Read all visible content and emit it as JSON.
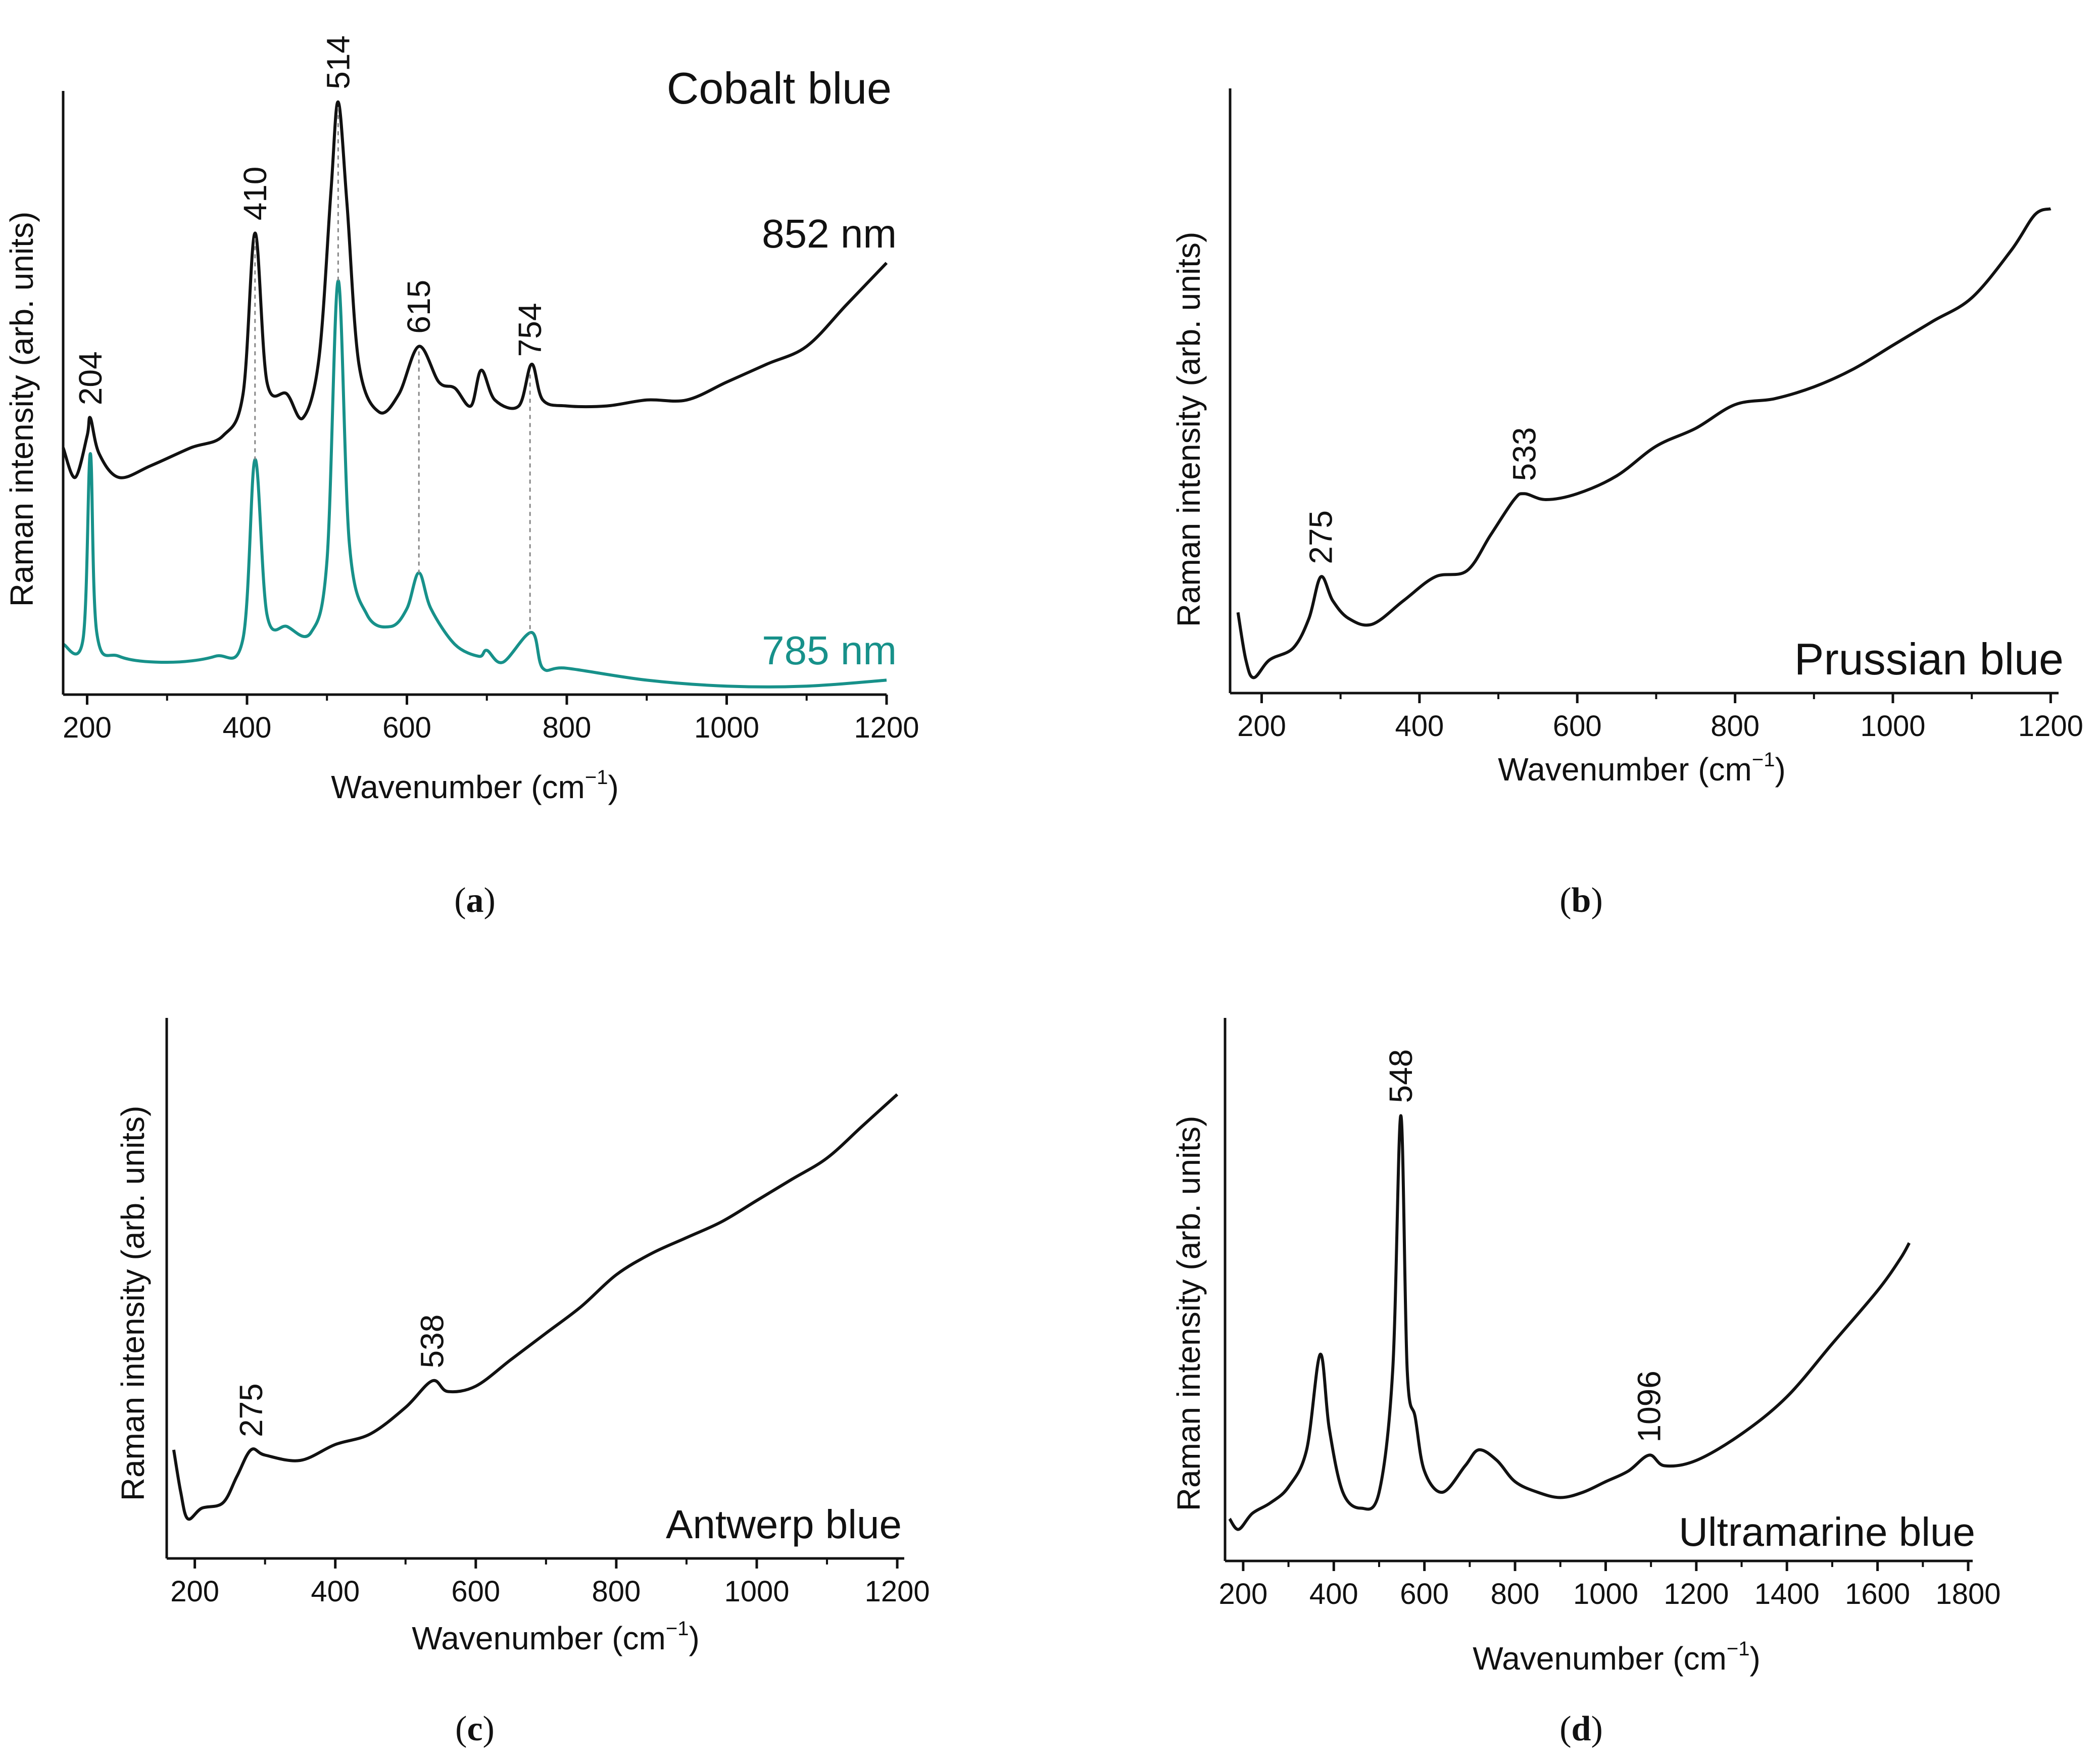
{
  "chart_data": [
    {
      "type": "line",
      "panel": "a",
      "caption_letter": "a",
      "title": "Cobalt blue",
      "xlabel": "Wavenumber (cm",
      "xlabel_sup": "−1",
      "xlabel_end": ")",
      "ylabel": "Raman intensity (arb. units)",
      "xlim": [
        170,
        1200
      ],
      "ylim": [
        0,
        1
      ],
      "xticks": [
        200,
        400,
        600,
        800,
        1000,
        1200
      ],
      "series": [
        {
          "name": "852 nm",
          "color": "#111111",
          "points": [
            [
              170,
              0.41
            ],
            [
              185,
              0.36
            ],
            [
              200,
              0.43
            ],
            [
              204,
              0.46
            ],
            [
              215,
              0.4
            ],
            [
              240,
              0.36
            ],
            [
              280,
              0.38
            ],
            [
              330,
              0.41
            ],
            [
              370,
              0.43
            ],
            [
              395,
              0.5
            ],
            [
              410,
              0.77
            ],
            [
              425,
              0.52
            ],
            [
              450,
              0.5
            ],
            [
              470,
              0.46
            ],
            [
              490,
              0.56
            ],
            [
              505,
              0.84
            ],
            [
              514,
              0.99
            ],
            [
              525,
              0.82
            ],
            [
              540,
              0.55
            ],
            [
              565,
              0.47
            ],
            [
              590,
              0.5
            ],
            [
              615,
              0.58
            ],
            [
              640,
              0.52
            ],
            [
              660,
              0.51
            ],
            [
              680,
              0.48
            ],
            [
              693,
              0.54
            ],
            [
              710,
              0.49
            ],
            [
              740,
              0.48
            ],
            [
              756,
              0.55
            ],
            [
              770,
              0.49
            ],
            [
              800,
              0.48
            ],
            [
              850,
              0.48
            ],
            [
              900,
              0.49
            ],
            [
              950,
              0.49
            ],
            [
              1000,
              0.52
            ],
            [
              1050,
              0.55
            ],
            [
              1100,
              0.58
            ],
            [
              1150,
              0.65
            ],
            [
              1200,
              0.72
            ]
          ]
        },
        {
          "name": "785 nm",
          "color": "#17918a",
          "points": [
            [
              170,
              0.08
            ],
            [
              195,
              0.09
            ],
            [
              204,
              0.4
            ],
            [
              212,
              0.1
            ],
            [
              240,
              0.06
            ],
            [
              300,
              0.05
            ],
            [
              360,
              0.06
            ],
            [
              395,
              0.09
            ],
            [
              410,
              0.39
            ],
            [
              425,
              0.13
            ],
            [
              450,
              0.11
            ],
            [
              480,
              0.1
            ],
            [
              500,
              0.22
            ],
            [
              514,
              0.69
            ],
            [
              528,
              0.25
            ],
            [
              550,
              0.13
            ],
            [
              580,
              0.11
            ],
            [
              600,
              0.14
            ],
            [
              615,
              0.2
            ],
            [
              630,
              0.14
            ],
            [
              660,
              0.08
            ],
            [
              690,
              0.06
            ],
            [
              700,
              0.07
            ],
            [
              720,
              0.05
            ],
            [
              756,
              0.1
            ],
            [
              770,
              0.04
            ],
            [
              800,
              0.04
            ],
            [
              900,
              0.02
            ],
            [
              1000,
              0.01
            ],
            [
              1100,
              0.01
            ],
            [
              1200,
              0.02
            ]
          ]
        }
      ],
      "peak_labels": [
        {
          "text": "204",
          "x": 204
        },
        {
          "text": "410",
          "x": 410
        },
        {
          "text": "514",
          "x": 514
        },
        {
          "text": "615",
          "x": 615
        },
        {
          "text": "754",
          "x": 754
        }
      ]
    },
    {
      "type": "line",
      "panel": "b",
      "caption_letter": "b",
      "title": "Prussian blue",
      "xlabel": "Wavenumber (cm",
      "xlabel_sup": "−1",
      "xlabel_end": ")",
      "ylabel": "Raman intensity (arb. units)",
      "xlim": [
        160,
        1210
      ],
      "ylim": [
        0,
        1
      ],
      "xticks": [
        200,
        400,
        600,
        800,
        1000,
        1200
      ],
      "series": [
        {
          "name": "",
          "color": "#111111",
          "points": [
            [
              170,
              0.13
            ],
            [
              180,
              0.05
            ],
            [
              190,
              0.02
            ],
            [
              210,
              0.05
            ],
            [
              240,
              0.07
            ],
            [
              260,
              0.12
            ],
            [
              275,
              0.19
            ],
            [
              290,
              0.15
            ],
            [
              310,
              0.12
            ],
            [
              340,
              0.11
            ],
            [
              380,
              0.15
            ],
            [
              420,
              0.19
            ],
            [
              460,
              0.2
            ],
            [
              490,
              0.26
            ],
            [
              520,
              0.32
            ],
            [
              533,
              0.33
            ],
            [
              560,
              0.32
            ],
            [
              600,
              0.33
            ],
            [
              650,
              0.36
            ],
            [
              700,
              0.41
            ],
            [
              750,
              0.44
            ],
            [
              800,
              0.48
            ],
            [
              850,
              0.49
            ],
            [
              900,
              0.51
            ],
            [
              950,
              0.54
            ],
            [
              1000,
              0.58
            ],
            [
              1050,
              0.62
            ],
            [
              1100,
              0.66
            ],
            [
              1150,
              0.74
            ],
            [
              1180,
              0.8
            ],
            [
              1200,
              0.81
            ]
          ]
        }
      ],
      "peak_labels": [
        {
          "text": "275",
          "x": 275
        },
        {
          "text": "533",
          "x": 533
        }
      ]
    },
    {
      "type": "line",
      "panel": "c",
      "caption_letter": "c",
      "title": "Antwerp blue",
      "xlabel": "Wavenumber (cm",
      "xlabel_sup": "−1",
      "xlabel_end": ")",
      "ylabel": "Raman intensity (arb. units)",
      "xlim": [
        160,
        1210
      ],
      "ylim": [
        0,
        1
      ],
      "xticks": [
        200,
        400,
        600,
        800,
        1000,
        1200
      ],
      "series": [
        {
          "name": "",
          "color": "#111111",
          "points": [
            [
              170,
              0.2
            ],
            [
              180,
              0.12
            ],
            [
              190,
              0.07
            ],
            [
              210,
              0.09
            ],
            [
              240,
              0.1
            ],
            [
              260,
              0.15
            ],
            [
              280,
              0.2
            ],
            [
              300,
              0.19
            ],
            [
              350,
              0.18
            ],
            [
              400,
              0.21
            ],
            [
              450,
              0.23
            ],
            [
              500,
              0.28
            ],
            [
              538,
              0.33
            ],
            [
              560,
              0.31
            ],
            [
              600,
              0.32
            ],
            [
              650,
              0.37
            ],
            [
              700,
              0.42
            ],
            [
              750,
              0.47
            ],
            [
              800,
              0.53
            ],
            [
              850,
              0.57
            ],
            [
              900,
              0.6
            ],
            [
              950,
              0.63
            ],
            [
              1000,
              0.67
            ],
            [
              1050,
              0.71
            ],
            [
              1100,
              0.75
            ],
            [
              1150,
              0.81
            ],
            [
              1200,
              0.87
            ]
          ]
        }
      ],
      "peak_labels": [
        {
          "text": "275",
          "x": 280
        },
        {
          "text": "538",
          "x": 538
        }
      ]
    },
    {
      "type": "line",
      "panel": "d",
      "caption_letter": "d",
      "title": "Ultramarine blue",
      "xlabel": "Wavenumber (cm",
      "xlabel_sup": "−1",
      "xlabel_end": ")",
      "ylabel": "Raman intensity (arb. units)",
      "xlim": [
        160,
        1810
      ],
      "ylim": [
        0,
        1
      ],
      "xticks": [
        200,
        400,
        600,
        800,
        1000,
        1200,
        1400,
        1600,
        1800
      ],
      "series": [
        {
          "name": "",
          "color": "#111111",
          "points": [
            [
              170,
              0.07
            ],
            [
              190,
              0.05
            ],
            [
              220,
              0.08
            ],
            [
              260,
              0.1
            ],
            [
              300,
              0.13
            ],
            [
              340,
              0.2
            ],
            [
              370,
              0.38
            ],
            [
              390,
              0.24
            ],
            [
              420,
              0.12
            ],
            [
              460,
              0.09
            ],
            [
              500,
              0.12
            ],
            [
              530,
              0.35
            ],
            [
              548,
              0.83
            ],
            [
              562,
              0.35
            ],
            [
              580,
              0.26
            ],
            [
              600,
              0.16
            ],
            [
              640,
              0.12
            ],
            [
              690,
              0.17
            ],
            [
              720,
              0.2
            ],
            [
              760,
              0.18
            ],
            [
              800,
              0.14
            ],
            [
              850,
              0.12
            ],
            [
              900,
              0.11
            ],
            [
              950,
              0.12
            ],
            [
              1000,
              0.14
            ],
            [
              1050,
              0.16
            ],
            [
              1096,
              0.19
            ],
            [
              1130,
              0.17
            ],
            [
              1200,
              0.18
            ],
            [
              1300,
              0.23
            ],
            [
              1400,
              0.3
            ],
            [
              1500,
              0.4
            ],
            [
              1600,
              0.5
            ],
            [
              1650,
              0.56
            ],
            [
              1670,
              0.59
            ]
          ]
        }
      ],
      "peak_labels": [
        {
          "text": "548",
          "x": 548
        },
        {
          "text": "1096",
          "x": 1096
        }
      ]
    }
  ]
}
